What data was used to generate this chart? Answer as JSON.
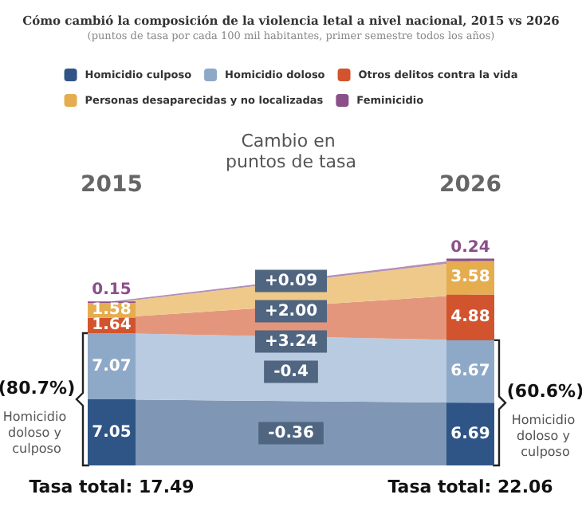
{
  "chart_data": {
    "type": "bar",
    "stacked": true,
    "data_labels": true,
    "legend": "top",
    "title": "Cómo cambió la composición de la violencia letal a nivel nacional, 2015 vs 2026",
    "subtitle": "(puntos de tasa por cada 100 mil habitantes, primer semestre todos los años)",
    "categories": [
      "2015",
      "2026"
    ],
    "series": [
      {
        "name": "Homicidio culposo",
        "color": "#2f5586",
        "values": [
          7.05,
          6.69
        ]
      },
      {
        "name": "Homicidio doloso",
        "color": "#8ea9c8",
        "values": [
          7.07,
          6.67
        ]
      },
      {
        "name": "Otros delitos contra la vida",
        "color": "#d2542e",
        "values": [
          1.64,
          4.88
        ]
      },
      {
        "name": "Personas desaparecidas y no localizadas",
        "color": "#e5ad4f",
        "values": [
          1.58,
          3.58
        ]
      },
      {
        "name": "Feminicidio",
        "color": "#8b4f8a",
        "values": [
          0.15,
          0.24
        ]
      },
      {
        "type": "area",
        "color": "#7f97b5",
        "values": [
          7.05,
          6.69
        ],
        "value_labels": [
          null,
          null
        ]
      },
      {
        "type": "area",
        "color": "#b9cbe0",
        "values": [
          7.07,
          6.67
        ],
        "value_labels": [
          null,
          null
        ]
      },
      {
        "type": "area",
        "color": "#e4967c",
        "values": [
          1.64,
          4.88
        ],
        "value_labels": [
          null,
          null
        ]
      },
      {
        "type": "area",
        "color": "#efc98a",
        "values": [
          1.58,
          3.58
        ],
        "value_labels": [
          null,
          null
        ]
      },
      {
        "type": "area",
        "color": "#b48fb4",
        "values": [
          0.15,
          0.24
        ],
        "value_labels": [
          null,
          null
        ]
      }
    ],
    "annotations": [
      "Cambio en puntos de tasa",
      "+0.09",
      "+2.00",
      "+3.24",
      "-0.4",
      "-0.36",
      "(80.7%)",
      "Homicidio doloso y culposo",
      "(60.6%)",
      "Homicidio doloso y culposo",
      "Tasa total: 17.49",
      "Tasa total: 22.06"
    ]
  }
}
